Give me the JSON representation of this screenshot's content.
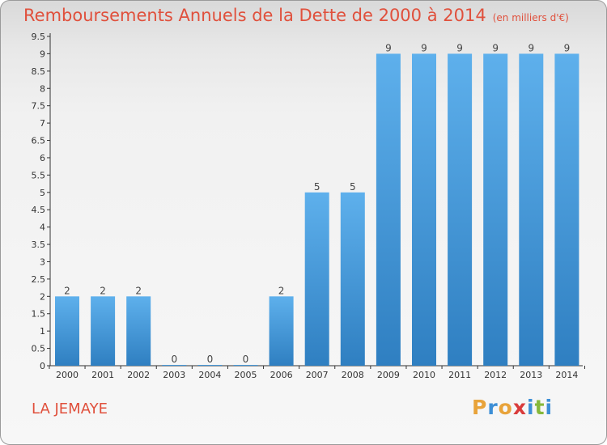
{
  "title": "Remboursements Annuels de la Dette de 2000 à 2014",
  "unit_note": "(en milliers d'€)",
  "commune": "LA JEMAYE",
  "logo": {
    "text": "Proxiti",
    "letters": [
      {
        "ch": "P",
        "color": "#e8a33a"
      },
      {
        "ch": "r",
        "color": "#3d8fd6"
      },
      {
        "ch": "o",
        "color": "#e8a33a"
      },
      {
        "ch": "x",
        "color": "#d93b3b"
      },
      {
        "ch": "i",
        "color": "#3d8fd6"
      },
      {
        "ch": "t",
        "color": "#86b83a"
      },
      {
        "ch": "i",
        "color": "#3d8fd6"
      }
    ]
  },
  "colors": {
    "accent": "#e0503c",
    "bar_light": "#5eb0ec",
    "bar_dark": "#2f7fc1"
  },
  "chart_data": {
    "type": "bar",
    "categories": [
      "2000",
      "2001",
      "2002",
      "2003",
      "2004",
      "2005",
      "2006",
      "2007",
      "2008",
      "2009",
      "2010",
      "2011",
      "2012",
      "2013",
      "2014"
    ],
    "values": [
      2,
      2,
      2,
      0,
      0,
      0,
      2,
      5,
      5,
      9,
      9,
      9,
      9,
      9,
      9
    ],
    "data_labels": [
      "2",
      "2",
      "2",
      "0",
      "0",
      "0",
      "2",
      "5",
      "5",
      "9",
      "9",
      "9",
      "9",
      "9",
      "9"
    ],
    "ylim": [
      0,
      9.5
    ],
    "y_ticks": [
      "0",
      "0.5",
      "1",
      "1.5",
      "2",
      "2.5",
      "3",
      "3.5",
      "4",
      "4.5",
      "5",
      "5.5",
      "6",
      "6.5",
      "7",
      "7.5",
      "8",
      "8.5",
      "9",
      "9.5"
    ],
    "grid": false,
    "xlabel": "",
    "ylabel": ""
  }
}
